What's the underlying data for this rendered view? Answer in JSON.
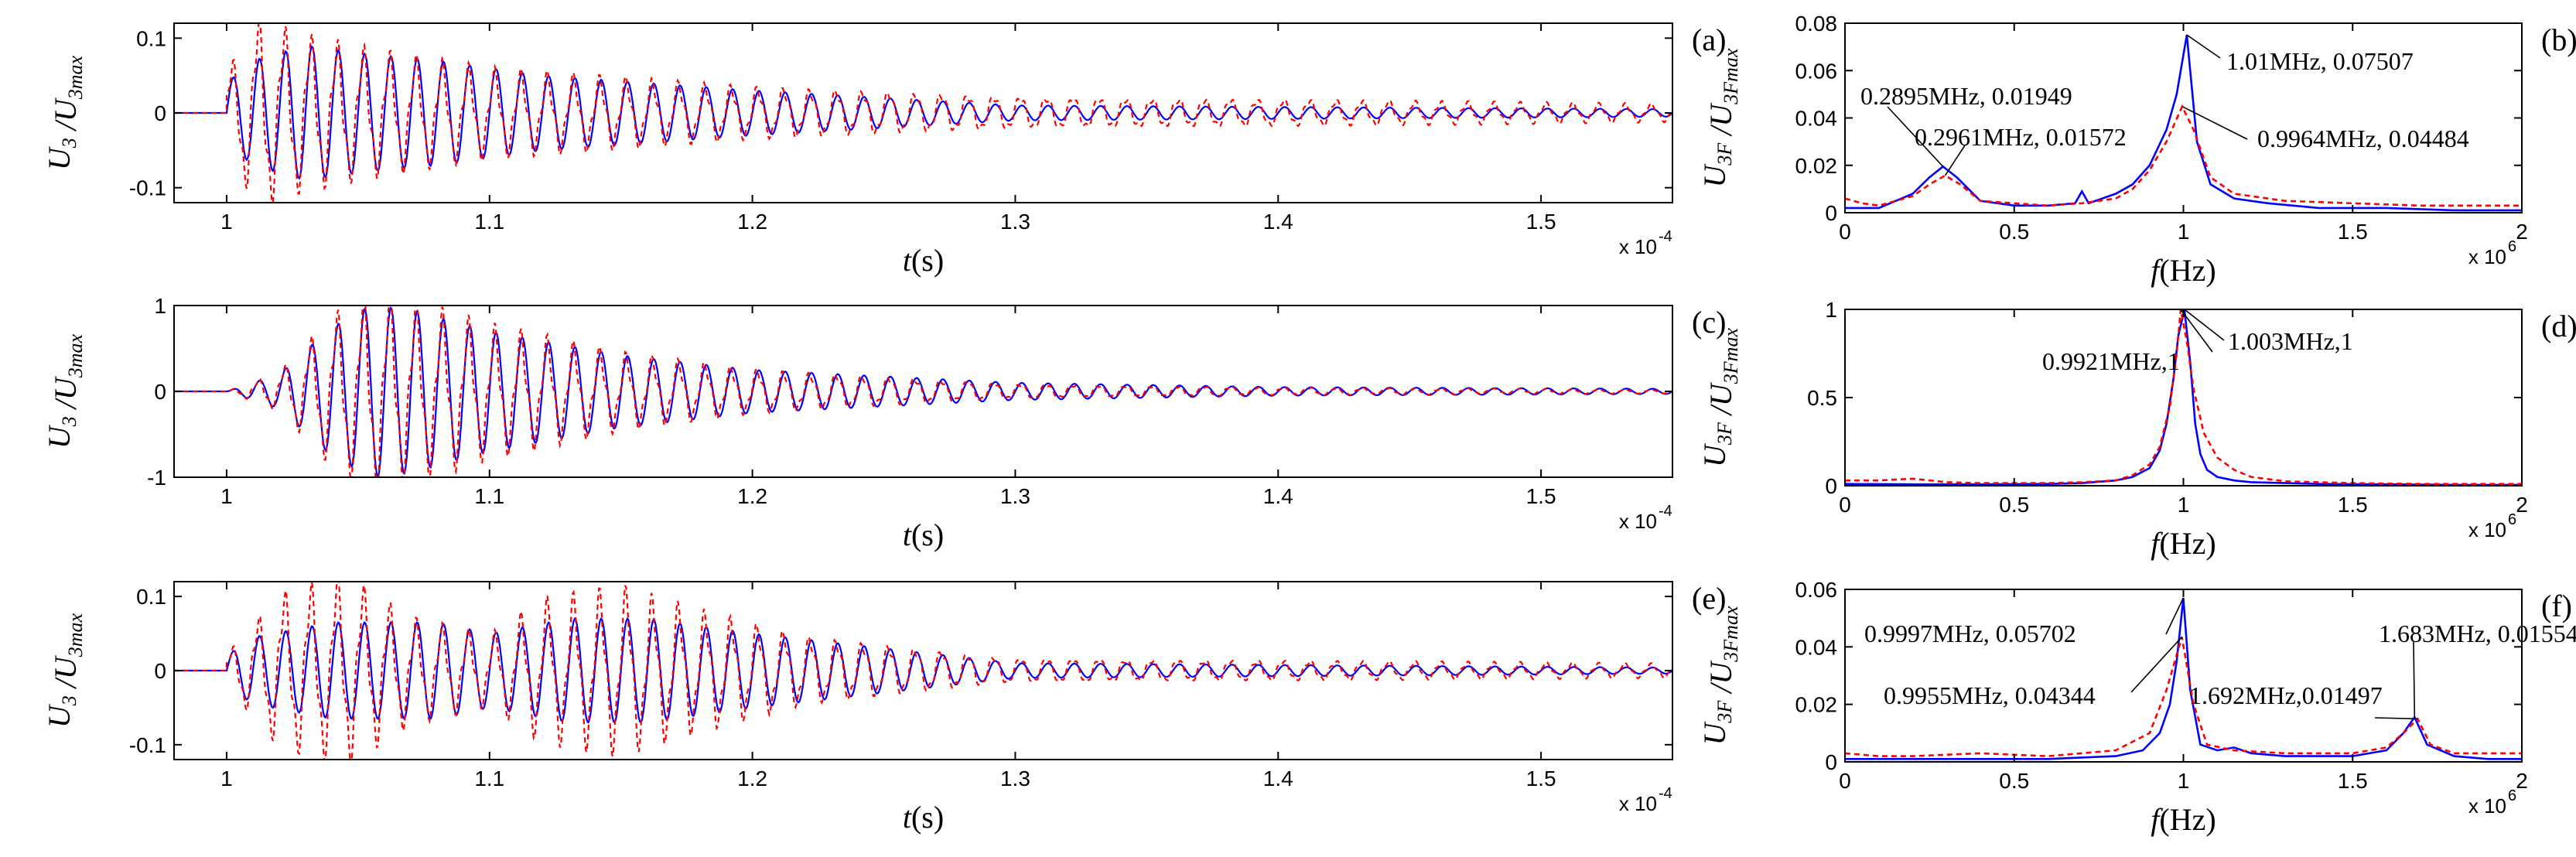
{
  "colors": {
    "series1": "#0000ff",
    "series2": "#ff0000",
    "axis": "#000000"
  },
  "chart_data": [
    {
      "id": "a",
      "type": "line",
      "panel_label": "(a)",
      "xlabel": "t(s)",
      "ylabel": "U3/U3max",
      "xlim": [
        0.98,
        1.55
      ],
      "ylim": [
        -0.12,
        0.12
      ],
      "xticks": [
        "1",
        "1.1",
        "1.2",
        "1.3",
        "1.4",
        "1.5"
      ],
      "yticks": [
        "-0.1",
        "0",
        "0.1"
      ],
      "x_exponent": "x 10",
      "x_exponent_power": "-4",
      "series": [
        {
          "style": "solid",
          "color": "#0000ff",
          "onset": 1.0,
          "freq": 1.0,
          "envelope": [
            [
              1.0,
              0.04
            ],
            [
              1.01,
              0.07
            ],
            [
              1.03,
              0.09
            ],
            [
              1.05,
              0.08
            ],
            [
              1.08,
              0.07
            ],
            [
              1.12,
              0.05
            ],
            [
              1.2,
              0.03
            ],
            [
              1.3,
              0.01
            ],
            [
              1.55,
              0.005
            ]
          ]
        },
        {
          "style": "dashed",
          "color": "#ff0000",
          "onset": 1.0,
          "freq": 1.0,
          "envelope": [
            [
              1.0,
              0.05
            ],
            [
              1.012,
              0.11
            ],
            [
              1.03,
              0.09
            ],
            [
              1.06,
              0.07
            ],
            [
              1.1,
              0.05
            ],
            [
              1.2,
              0.03
            ],
            [
              1.3,
              0.02
            ],
            [
              1.55,
              0.01
            ]
          ]
        }
      ],
      "annotations": []
    },
    {
      "id": "b",
      "type": "line",
      "panel_label": "(b)",
      "xlabel": "f(Hz)",
      "ylabel": "U3F/U3Fmax",
      "xlim": [
        0,
        2
      ],
      "ylim": [
        0,
        0.08
      ],
      "xticks": [
        "0",
        "0.5",
        "1",
        "1.5",
        "2"
      ],
      "yticks": [
        "0",
        "0.02",
        "0.04",
        "0.06",
        "0.08"
      ],
      "x_exponent": "x 10",
      "x_exponent_power": "6",
      "series": [
        {
          "style": "solid",
          "color": "#0000ff",
          "x": [
            0,
            0.1,
            0.2,
            0.25,
            0.2895,
            0.33,
            0.4,
            0.5,
            0.6,
            0.68,
            0.7,
            0.72,
            0.8,
            0.85,
            0.9,
            0.95,
            0.98,
            1.01,
            1.04,
            1.08,
            1.15,
            1.25,
            1.4,
            1.6,
            1.8,
            2.0
          ],
          "y": [
            0.002,
            0.002,
            0.008,
            0.015,
            0.01949,
            0.015,
            0.005,
            0.003,
            0.003,
            0.004,
            0.009,
            0.004,
            0.008,
            0.012,
            0.02,
            0.035,
            0.05,
            0.07507,
            0.03,
            0.012,
            0.006,
            0.004,
            0.002,
            0.002,
            0.001,
            0.001
          ]
        },
        {
          "style": "dashed",
          "color": "#ff0000",
          "x": [
            0,
            0.05,
            0.1,
            0.2,
            0.25,
            0.2961,
            0.34,
            0.4,
            0.5,
            0.6,
            0.7,
            0.8,
            0.85,
            0.9,
            0.95,
            0.9964,
            1.03,
            1.08,
            1.15,
            1.3,
            1.5,
            1.7,
            1.9,
            2.0
          ],
          "y": [
            0.006,
            0.004,
            0.003,
            0.007,
            0.012,
            0.01572,
            0.012,
            0.005,
            0.004,
            0.003,
            0.004,
            0.006,
            0.01,
            0.018,
            0.03,
            0.04484,
            0.035,
            0.015,
            0.008,
            0.005,
            0.004,
            0.003,
            0.003,
            0.003
          ]
        }
      ],
      "annotations": [
        {
          "text": "0.2895MHz, 0.01949",
          "x": 0.2895,
          "y": 0.01949
        },
        {
          "text": "0.2961MHz, 0.01572",
          "x": 0.2961,
          "y": 0.01572
        },
        {
          "text": "1.01MHz, 0.07507",
          "x": 1.01,
          "y": 0.07507
        },
        {
          "text": "0.9964MHz, 0.04484",
          "x": 0.9964,
          "y": 0.04484
        }
      ]
    },
    {
      "id": "c",
      "type": "line",
      "panel_label": "(c)",
      "xlabel": "t(s)",
      "ylabel": "U3/U3max",
      "xlim": [
        0.98,
        1.55
      ],
      "ylim": [
        -1,
        1
      ],
      "xticks": [
        "1",
        "1.1",
        "1.2",
        "1.3",
        "1.4",
        "1.5"
      ],
      "yticks": [
        "-1",
        "0",
        "1"
      ],
      "x_exponent": "x 10",
      "x_exponent_power": "-4",
      "series": [
        {
          "style": "solid",
          "color": "#0000ff",
          "onset": 1.0,
          "freq": 1.0,
          "envelope": [
            [
              1.0,
              0.0
            ],
            [
              1.02,
              0.2
            ],
            [
              1.04,
              0.75
            ],
            [
              1.055,
              1.0
            ],
            [
              1.07,
              0.95
            ],
            [
              1.1,
              0.7
            ],
            [
              1.15,
              0.42
            ],
            [
              1.2,
              0.25
            ],
            [
              1.3,
              0.1
            ],
            [
              1.4,
              0.05
            ],
            [
              1.55,
              0.03
            ]
          ]
        },
        {
          "style": "dashed",
          "color": "#ff0000",
          "onset": 1.0,
          "freq": 1.0,
          "envelope": [
            [
              1.0,
              0.0
            ],
            [
              1.02,
              0.2
            ],
            [
              1.04,
              0.75
            ],
            [
              1.055,
              1.0
            ],
            [
              1.07,
              0.9
            ],
            [
              1.1,
              0.65
            ],
            [
              1.15,
              0.38
            ],
            [
              1.2,
              0.22
            ],
            [
              1.3,
              0.08
            ],
            [
              1.4,
              0.04
            ],
            [
              1.55,
              0.02
            ]
          ]
        }
      ],
      "annotations": []
    },
    {
      "id": "d",
      "type": "line",
      "panel_label": "(d)",
      "xlabel": "f(Hz)",
      "ylabel": "U3F/U3Fmax",
      "xlim": [
        0,
        2
      ],
      "ylim": [
        0,
        1
      ],
      "xticks": [
        "0",
        "0.5",
        "1",
        "1.5",
        "2"
      ],
      "yticks": [
        "0",
        "0.5",
        "1"
      ],
      "x_exponent": "x 10",
      "x_exponent_power": "6",
      "series": [
        {
          "style": "solid",
          "color": "#0000ff",
          "x": [
            0,
            0.2,
            0.4,
            0.6,
            0.7,
            0.8,
            0.85,
            0.9,
            0.93,
            0.95,
            0.97,
            0.985,
            1.003,
            1.02,
            1.035,
            1.05,
            1.07,
            1.1,
            1.15,
            1.2,
            1.4,
            1.6,
            1.8,
            2.0
          ],
          "y": [
            0.01,
            0.008,
            0.008,
            0.01,
            0.015,
            0.03,
            0.05,
            0.1,
            0.2,
            0.35,
            0.6,
            0.85,
            1.0,
            0.7,
            0.35,
            0.18,
            0.09,
            0.05,
            0.03,
            0.02,
            0.01,
            0.008,
            0.005,
            0.005
          ]
        },
        {
          "style": "dashed",
          "color": "#ff0000",
          "x": [
            0,
            0.1,
            0.2,
            0.3,
            0.4,
            0.6,
            0.7,
            0.8,
            0.85,
            0.9,
            0.93,
            0.96,
            0.98,
            0.9921,
            1.01,
            1.03,
            1.06,
            1.1,
            1.15,
            1.2,
            1.3,
            1.5,
            1.7,
            2.0
          ],
          "y": [
            0.03,
            0.03,
            0.04,
            0.02,
            0.015,
            0.015,
            0.02,
            0.03,
            0.06,
            0.12,
            0.22,
            0.45,
            0.75,
            1.0,
            0.82,
            0.55,
            0.3,
            0.16,
            0.09,
            0.05,
            0.025,
            0.015,
            0.01,
            0.01
          ]
        }
      ],
      "annotations": [
        {
          "text": "0.9921MHz,1",
          "x": 0.9921,
          "y": 1
        },
        {
          "text": "1.003MHz,1",
          "x": 1.003,
          "y": 1
        }
      ]
    },
    {
      "id": "e",
      "type": "line",
      "panel_label": "(e)",
      "xlabel": "t(s)",
      "ylabel": "U3/U3max",
      "xlim": [
        0.98,
        1.55
      ],
      "ylim": [
        -0.12,
        0.12
      ],
      "xticks": [
        "1",
        "1.1",
        "1.2",
        "1.3",
        "1.4",
        "1.5"
      ],
      "yticks": [
        "-0.1",
        "0",
        "0.1"
      ],
      "x_exponent": "x 10",
      "x_exponent_power": "-4",
      "series": [
        {
          "style": "solid",
          "color": "#0000ff",
          "onset": 1.0,
          "freq": 1.0,
          "envelope": [
            [
              1.0,
              0.02
            ],
            [
              1.01,
              0.045
            ],
            [
              1.04,
              0.065
            ],
            [
              1.08,
              0.065
            ],
            [
              1.1,
              0.05
            ],
            [
              1.13,
              0.07
            ],
            [
              1.16,
              0.07
            ],
            [
              1.2,
              0.05
            ],
            [
              1.25,
              0.03
            ],
            [
              1.3,
              0.01
            ],
            [
              1.55,
              0.004
            ]
          ]
        },
        {
          "style": "dashed",
          "color": "#ff0000",
          "onset": 1.0,
          "freq": 1.0,
          "envelope": [
            [
              1.0,
              0.02
            ],
            [
              1.02,
              0.09
            ],
            [
              1.045,
              0.11
            ],
            [
              1.07,
              0.06
            ],
            [
              1.1,
              0.04
            ],
            [
              1.12,
              0.08
            ],
            [
              1.15,
              0.095
            ],
            [
              1.18,
              0.07
            ],
            [
              1.22,
              0.04
            ],
            [
              1.3,
              0.015
            ],
            [
              1.55,
              0.008
            ]
          ]
        }
      ],
      "annotations": []
    },
    {
      "id": "f",
      "type": "line",
      "panel_label": "(f)",
      "xlabel": "f(Hz)",
      "ylabel": "U3F/U3Fmax",
      "xlim": [
        0,
        2
      ],
      "ylim": [
        0,
        0.06
      ],
      "xticks": [
        "0",
        "0.5",
        "1",
        "1.5",
        "2"
      ],
      "yticks": [
        "0",
        "0.02",
        "0.04",
        "0.06"
      ],
      "x_exponent": "x 10",
      "x_exponent_power": "6",
      "series": [
        {
          "style": "solid",
          "color": "#0000ff",
          "x": [
            0,
            0.2,
            0.4,
            0.6,
            0.8,
            0.88,
            0.93,
            0.96,
            0.98,
            0.9997,
            1.02,
            1.05,
            1.1,
            1.15,
            1.2,
            1.3,
            1.5,
            1.6,
            1.65,
            1.683,
            1.72,
            1.8,
            1.9,
            2.0
          ],
          "y": [
            0.001,
            0.001,
            0.001,
            0.001,
            0.002,
            0.004,
            0.01,
            0.02,
            0.035,
            0.05702,
            0.025,
            0.006,
            0.004,
            0.005,
            0.003,
            0.002,
            0.002,
            0.004,
            0.01,
            0.01554,
            0.006,
            0.002,
            0.001,
            0.001
          ]
        },
        {
          "style": "dashed",
          "color": "#ff0000",
          "x": [
            0,
            0.1,
            0.2,
            0.4,
            0.6,
            0.8,
            0.9,
            0.95,
            0.9955,
            1.03,
            1.07,
            1.15,
            1.3,
            1.5,
            1.6,
            1.65,
            1.692,
            1.73,
            1.8,
            1.9,
            2.0
          ],
          "y": [
            0.003,
            0.002,
            0.002,
            0.003,
            0.002,
            0.004,
            0.01,
            0.025,
            0.04344,
            0.02,
            0.006,
            0.004,
            0.003,
            0.003,
            0.005,
            0.01,
            0.01497,
            0.006,
            0.003,
            0.003,
            0.003
          ]
        }
      ],
      "annotations": [
        {
          "text": "0.9997MHz, 0.05702",
          "x": 0.9997,
          "y": 0.05702
        },
        {
          "text": "0.9955MHz, 0.04344",
          "x": 0.9955,
          "y": 0.04344
        },
        {
          "text": "1.683MHz, 0.01554",
          "x": 1.683,
          "y": 0.01554
        },
        {
          "text": "1.692MHz,0.01497",
          "x": 1.692,
          "y": 0.01497
        }
      ]
    }
  ]
}
